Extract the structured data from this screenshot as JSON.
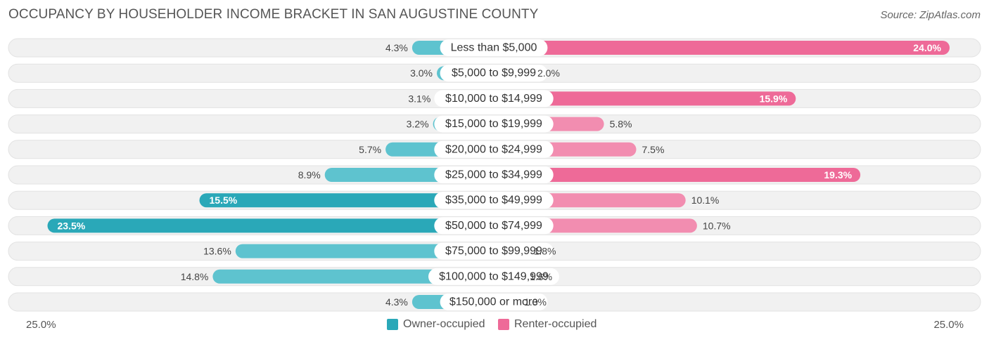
{
  "title": "OCCUPANCY BY HOUSEHOLDER INCOME BRACKET IN SAN AUGUSTINE COUNTY",
  "source": "Source: ZipAtlas.com",
  "colors": {
    "owner": "#5ec3cf",
    "owner_strong": "#2aa8b8",
    "renter": "#f28db0",
    "renter_strong": "#ee6a98",
    "row_bg": "#f1f1f1"
  },
  "legend": {
    "owner": "Owner-occupied",
    "renter": "Renter-occupied"
  },
  "axis": {
    "left_label": "25.0%",
    "right_label": "25.0%"
  },
  "chart_data": {
    "type": "bar",
    "orientation": "horizontal-diverging",
    "max": 25.0,
    "categories": [
      "Less than $5,000",
      "$5,000 to $9,999",
      "$10,000 to $14,999",
      "$15,000 to $19,999",
      "$20,000 to $24,999",
      "$25,000 to $34,999",
      "$35,000 to $49,999",
      "$50,000 to $74,999",
      "$75,000 to $99,999",
      "$100,000 to $149,999",
      "$150,000 or more"
    ],
    "series": [
      {
        "name": "Owner-occupied",
        "values": [
          4.3,
          3.0,
          3.1,
          3.2,
          5.7,
          8.9,
          15.5,
          23.5,
          13.6,
          14.8,
          4.3
        ],
        "labels": [
          "4.3%",
          "3.0%",
          "3.1%",
          "3.2%",
          "5.7%",
          "8.9%",
          "15.5%",
          "23.5%",
          "13.6%",
          "14.8%",
          "4.3%"
        ]
      },
      {
        "name": "Renter-occupied",
        "values": [
          24.0,
          2.0,
          15.9,
          5.8,
          7.5,
          19.3,
          10.1,
          10.7,
          1.8,
          1.6,
          1.3
        ],
        "labels": [
          "24.0%",
          "2.0%",
          "15.9%",
          "5.8%",
          "7.5%",
          "19.3%",
          "10.1%",
          "10.7%",
          "1.8%",
          "1.6%",
          "1.3%"
        ]
      }
    ]
  }
}
